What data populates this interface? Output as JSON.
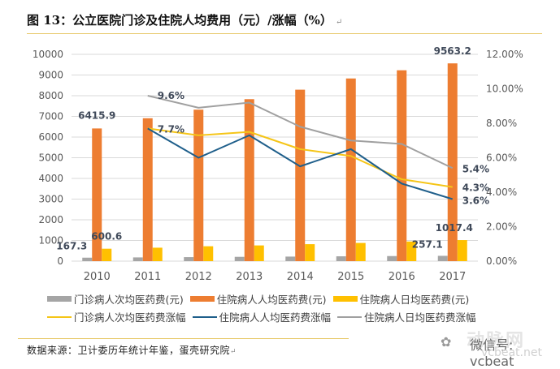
{
  "figure": {
    "title": "图 13：公立医院门诊及住院人均费用（元）/涨幅（%）",
    "return_mark": "↵",
    "source": "数据来源：卫计委历年统计年鉴，蛋壳研究院",
    "watermark": {
      "wechat": "微信号: vcbeat",
      "brand": "动脉网",
      "site": "vcbeat.net"
    }
  },
  "chart_data": {
    "type": "bar+line",
    "title": "图 13：公立医院门诊及住院人均费用（元）/涨幅（%）",
    "categories": [
      "2010",
      "2011",
      "2012",
      "2013",
      "2014",
      "2015",
      "2016",
      "2017"
    ],
    "left_axis": {
      "range": [
        0,
        10000
      ],
      "ticks": [
        "0",
        "1000",
        "2000",
        "3000",
        "4000",
        "5000",
        "6000",
        "7000",
        "8000",
        "9000",
        "10000"
      ]
    },
    "right_axis": {
      "range": [
        0,
        12
      ],
      "unit": "%",
      "ticks": [
        "0.00%",
        "2.00%",
        "4.00%",
        "6.00%",
        "8.00%",
        "10.00%",
        "12.00%"
      ]
    },
    "grid": true,
    "legend_position": "bottom",
    "bar_series": [
      {
        "name": "门诊病人次均医药费(元)",
        "color": "#a5a5a5",
        "values": [
          167.3,
          180.2,
          193.4,
          207.9,
          220.0,
          233.9,
          245.5,
          257.1
        ],
        "labels": {
          "0": "167.3",
          "7": "257.1"
        }
      },
      {
        "name": "住院病人人均医药费(元)",
        "color": "#ed7d31",
        "values": [
          6415.9,
          6909.9,
          7325.1,
          7832.3,
          8290.5,
          8833.0,
          9229.7,
          9563.2
        ],
        "labels": {
          "0": "6415.9",
          "7": "9563.2"
        }
      },
      {
        "name": "住院病人日均医药费(元)",
        "color": "#ffc000",
        "values": [
          600.6,
          650.0,
          720.0,
          760.0,
          820.0,
          880.0,
          950.0,
          1017.4
        ],
        "labels": {
          "0": "600.6",
          "7": "1017.4"
        }
      }
    ],
    "line_series": [
      {
        "name": "门诊病人次均医药费涨幅",
        "color": "#f5c518",
        "values": [
          null,
          7.7,
          7.3,
          7.5,
          6.5,
          6.1,
          4.75,
          4.3
        ],
        "labels": {
          "1": "7.7%",
          "7": "4.3%"
        }
      },
      {
        "name": "住院病人人均医药费涨幅",
        "color": "#1f5f8b",
        "values": [
          null,
          7.7,
          6.0,
          7.3,
          5.5,
          6.5,
          4.5,
          3.6
        ],
        "labels": {
          "7": "3.6%"
        }
      },
      {
        "name": "住院病人日均医药费涨幅",
        "color": "#a0a0a0",
        "values": [
          null,
          9.6,
          8.9,
          9.2,
          7.8,
          7.0,
          6.8,
          5.4
        ],
        "labels": {
          "1": "9.6%",
          "7": "5.4%"
        }
      }
    ]
  }
}
